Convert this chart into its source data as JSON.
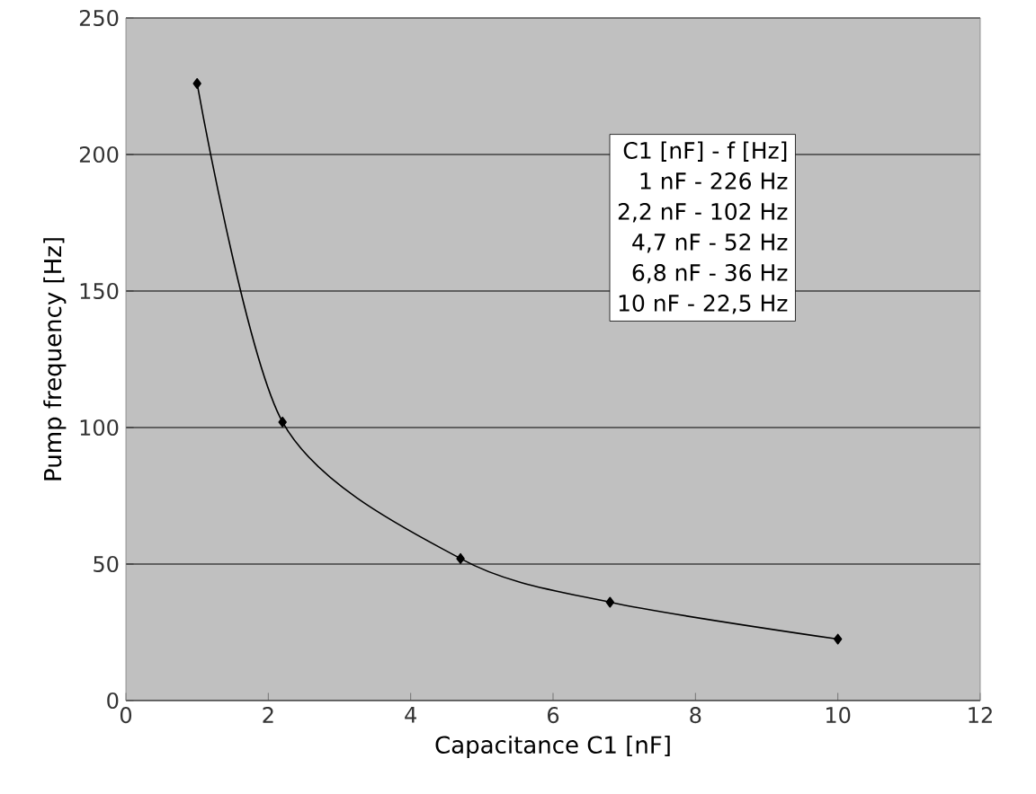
{
  "chart_data": {
    "type": "line",
    "xlabel": "Capacitance C1 [nF]",
    "ylabel": "Pump frequency [Hz]",
    "x": [
      1,
      2.2,
      4.7,
      6.8,
      10
    ],
    "series": [
      {
        "color": "#000000",
        "values": [
          226,
          102,
          52,
          36,
          22.5
        ]
      }
    ],
    "xlim": [
      0,
      12
    ],
    "xticks": [
      0,
      2,
      4,
      6,
      8,
      10,
      12
    ],
    "ylim": [
      0,
      250
    ],
    "yticks": [
      0,
      50,
      100,
      150,
      200,
      250
    ],
    "grid": "y",
    "marker": "diamond",
    "line_style": "solid",
    "annotations": [
      "C1 [nF]  -  f [Hz]",
      "1 nF  -  226 Hz",
      "2,2 nF  -  102 Hz",
      "4,7 nF  -  52 Hz",
      "6,8 nF  -  36 Hz",
      "10 nF  -  22,5 Hz"
    ]
  }
}
